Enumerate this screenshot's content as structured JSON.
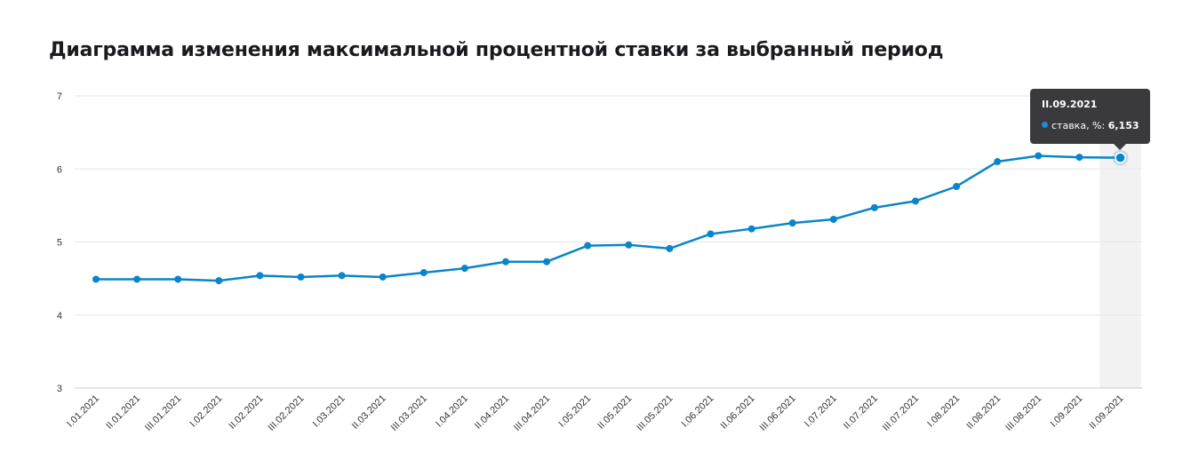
{
  "title": "Диаграмма изменения максимальной процентной ставки за выбранный период",
  "tooltip": {
    "date": "II.09.2021",
    "series_label": "ставка, %:",
    "value": "6,153"
  },
  "colors": {
    "line": "#0a85c9",
    "grid": "#e6e6e6",
    "highlight_band": "#f2f2f2",
    "tooltip_bg": "#3a3a3d"
  },
  "chart_data": {
    "type": "line",
    "title": "Диаграмма изменения максимальной процентной ставки за выбранный период",
    "xlabel": "",
    "ylabel": "",
    "ylim": [
      3,
      7
    ],
    "yticks": [
      "3",
      "4",
      "5",
      "6",
      "7"
    ],
    "grid": true,
    "categories": [
      "I.01.2021",
      "II.01.2021",
      "III.01.2021",
      "I.02.2021",
      "II.02.2021",
      "III.02.2021",
      "I.03.2021",
      "II.03.2021",
      "III.03.2021",
      "I.04.2021",
      "II.04.2021",
      "III.04.2021",
      "I.05.2021",
      "II.05.2021",
      "III.05.2021",
      "I.06.2021",
      "II.06.2021",
      "III.06.2021",
      "I.07.2021",
      "II.07.2021",
      "III.07.2021",
      "I.08.2021",
      "II.08.2021",
      "III.08.2021",
      "I.09.2021",
      "II.09.2021"
    ],
    "series": [
      {
        "name": "ставка, %",
        "values": [
          4.49,
          4.49,
          4.49,
          4.47,
          4.54,
          4.52,
          4.54,
          4.52,
          4.58,
          4.64,
          4.73,
          4.73,
          4.95,
          4.96,
          4.91,
          5.11,
          5.18,
          5.26,
          5.31,
          5.47,
          5.56,
          5.76,
          6.1,
          6.18,
          6.16,
          6.153
        ]
      }
    ],
    "highlighted_index": 25
  }
}
